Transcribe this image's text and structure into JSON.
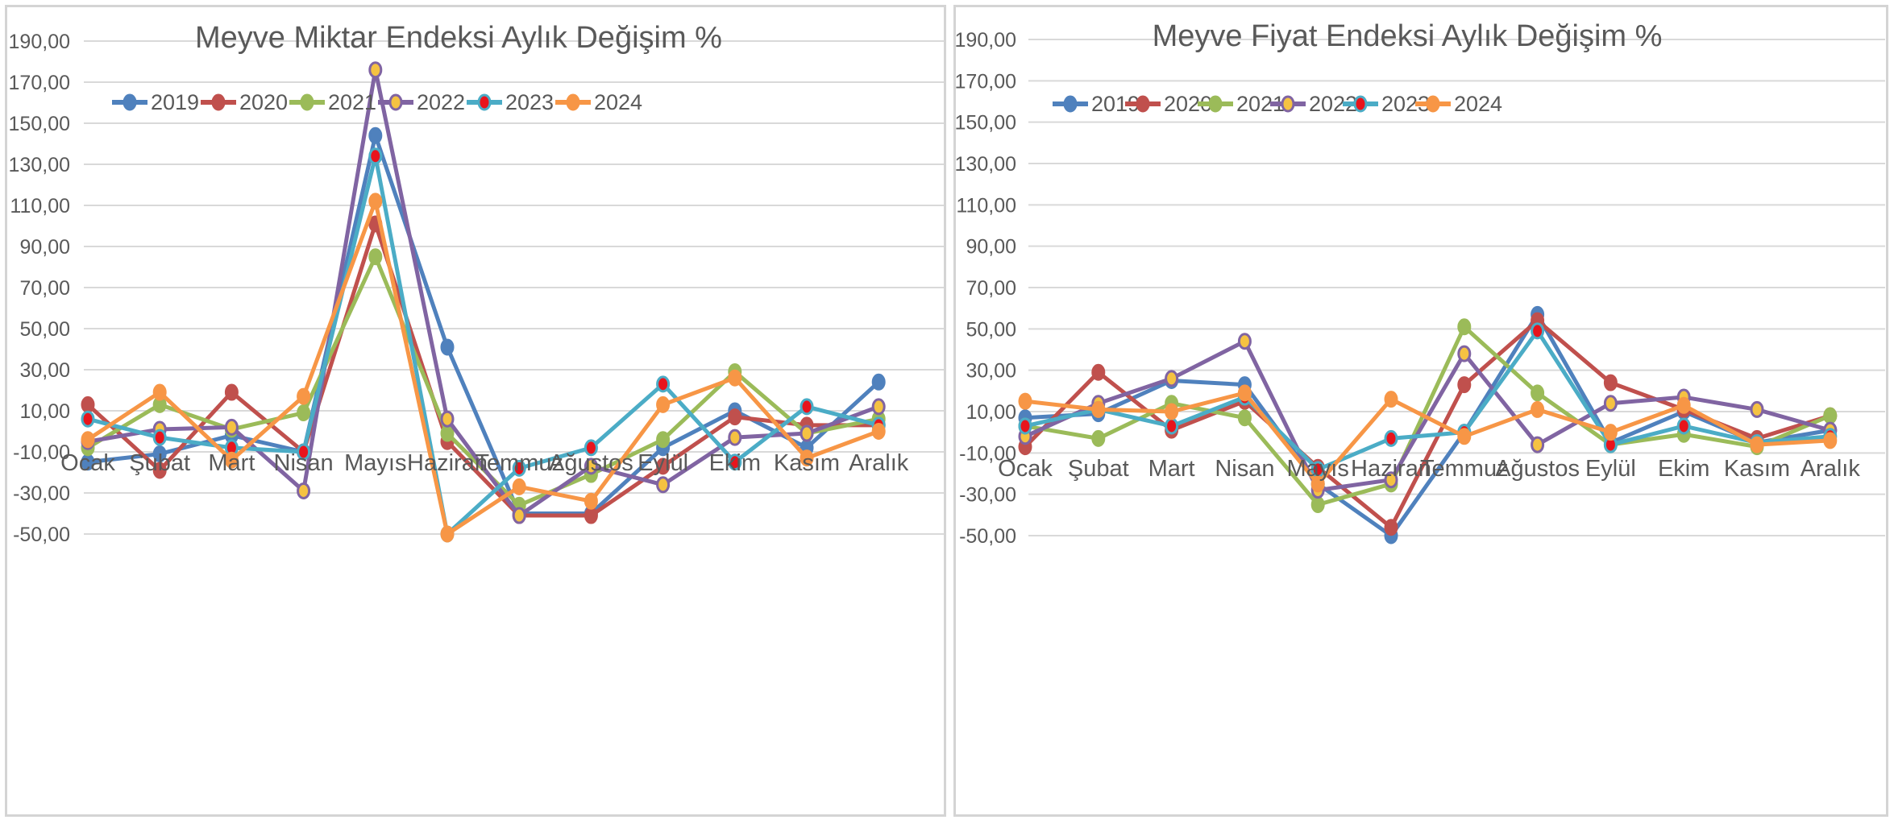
{
  "chart_data": [
    {
      "type": "line",
      "title": "Meyve Miktar Endeksi Aylık Değişim %",
      "categories": [
        "Ocak",
        "Şubat",
        "Mart",
        "Nisan",
        "Mayıs",
        "Haziran",
        "Temmuz",
        "Ağustos",
        "Eylül",
        "Ekim",
        "Kasım",
        "Aralık"
      ],
      "y_ticks": [
        "190,00",
        "170,00",
        "150,00",
        "130,00",
        "110,00",
        "90,00",
        "70,00",
        "50,00",
        "30,00",
        "10,00",
        "-10,00",
        "-30,00",
        "-50,00"
      ],
      "ylim": [
        -50,
        190
      ],
      "legend_position": "top",
      "series": [
        {
          "name": "2019",
          "color": "#4f81bd",
          "marker_fill": "#4f81bd",
          "values": [
            -15,
            -11,
            -2,
            -10,
            144,
            41,
            -40,
            -40,
            -8,
            10,
            -8,
            24
          ]
        },
        {
          "name": "2020",
          "color": "#c0504d",
          "marker_fill": "#c0504d",
          "values": [
            13,
            -19,
            19,
            -10,
            101,
            -5,
            -41,
            -41,
            -17,
            7,
            3,
            3
          ]
        },
        {
          "name": "2021",
          "color": "#9bbb59",
          "marker_fill": "#9bbb59",
          "values": [
            -8,
            13,
            1,
            9,
            85,
            -1,
            -36,
            -21,
            -4,
            29,
            -1,
            6
          ]
        },
        {
          "name": "2022",
          "color": "#8064a2",
          "marker_fill": "#f5c242",
          "values": [
            -5,
            1,
            2,
            -29,
            176,
            6,
            -41,
            -17,
            -26,
            -3,
            -1,
            12
          ]
        },
        {
          "name": "2023",
          "color": "#4bacc6",
          "marker_fill": "#e8141c",
          "values": [
            6,
            -3,
            -8,
            -10,
            134,
            -50,
            -18,
            -8,
            23,
            -15,
            12,
            3
          ]
        },
        {
          "name": "2024",
          "color": "#f79646",
          "marker_fill": "#f79646",
          "values": [
            -4,
            19,
            -14,
            17,
            112,
            -50,
            -27,
            -34,
            13,
            26,
            -13,
            0
          ]
        }
      ]
    },
    {
      "type": "line",
      "title": "Meyve Fiyat Endeksi Aylık Değişim %",
      "categories": [
        "Ocak",
        "Şubat",
        "Mart",
        "Nisan",
        "Mayıs",
        "Haziran",
        "Temmuz",
        "Ağustos",
        "Eylül",
        "Ekim",
        "Kasım",
        "Aralık"
      ],
      "y_ticks": [
        "190,00",
        "170,00",
        "150,00",
        "130,00",
        "110,00",
        "90,00",
        "70,00",
        "50,00",
        "30,00",
        "10,00",
        "-10,00",
        "-30,00",
        "-50,00"
      ],
      "ylim": [
        -50,
        190
      ],
      "legend_position": "top",
      "series": [
        {
          "name": "2019",
          "color": "#4f81bd",
          "marker_fill": "#4f81bd",
          "values": [
            7,
            9,
            25,
            23,
            -25,
            -50,
            0,
            57,
            -5,
            10,
            -5,
            1
          ]
        },
        {
          "name": "2020",
          "color": "#c0504d",
          "marker_fill": "#c0504d",
          "values": [
            -7,
            29,
            1,
            15,
            -17,
            -46,
            23,
            54,
            24,
            11,
            -3,
            8
          ]
        },
        {
          "name": "2021",
          "color": "#9bbb59",
          "marker_fill": "#9bbb59",
          "values": [
            3,
            -3,
            14,
            7,
            -35,
            -25,
            51,
            19,
            -6,
            -1,
            -7,
            8
          ]
        },
        {
          "name": "2022",
          "color": "#8064a2",
          "marker_fill": "#f5c242",
          "values": [
            -2,
            14,
            26,
            44,
            -28,
            -23,
            38,
            -6,
            14,
            17,
            11,
            1
          ]
        },
        {
          "name": "2023",
          "color": "#4bacc6",
          "marker_fill": "#e8141c",
          "values": [
            3,
            11,
            3,
            17,
            -18,
            -3,
            0,
            49,
            -6,
            3,
            -5,
            -2
          ]
        },
        {
          "name": "2024",
          "color": "#f79646",
          "marker_fill": "#f79646",
          "values": [
            15,
            11,
            10,
            19,
            -25,
            16,
            -2,
            11,
            0,
            13,
            -6,
            -4
          ]
        }
      ]
    }
  ]
}
